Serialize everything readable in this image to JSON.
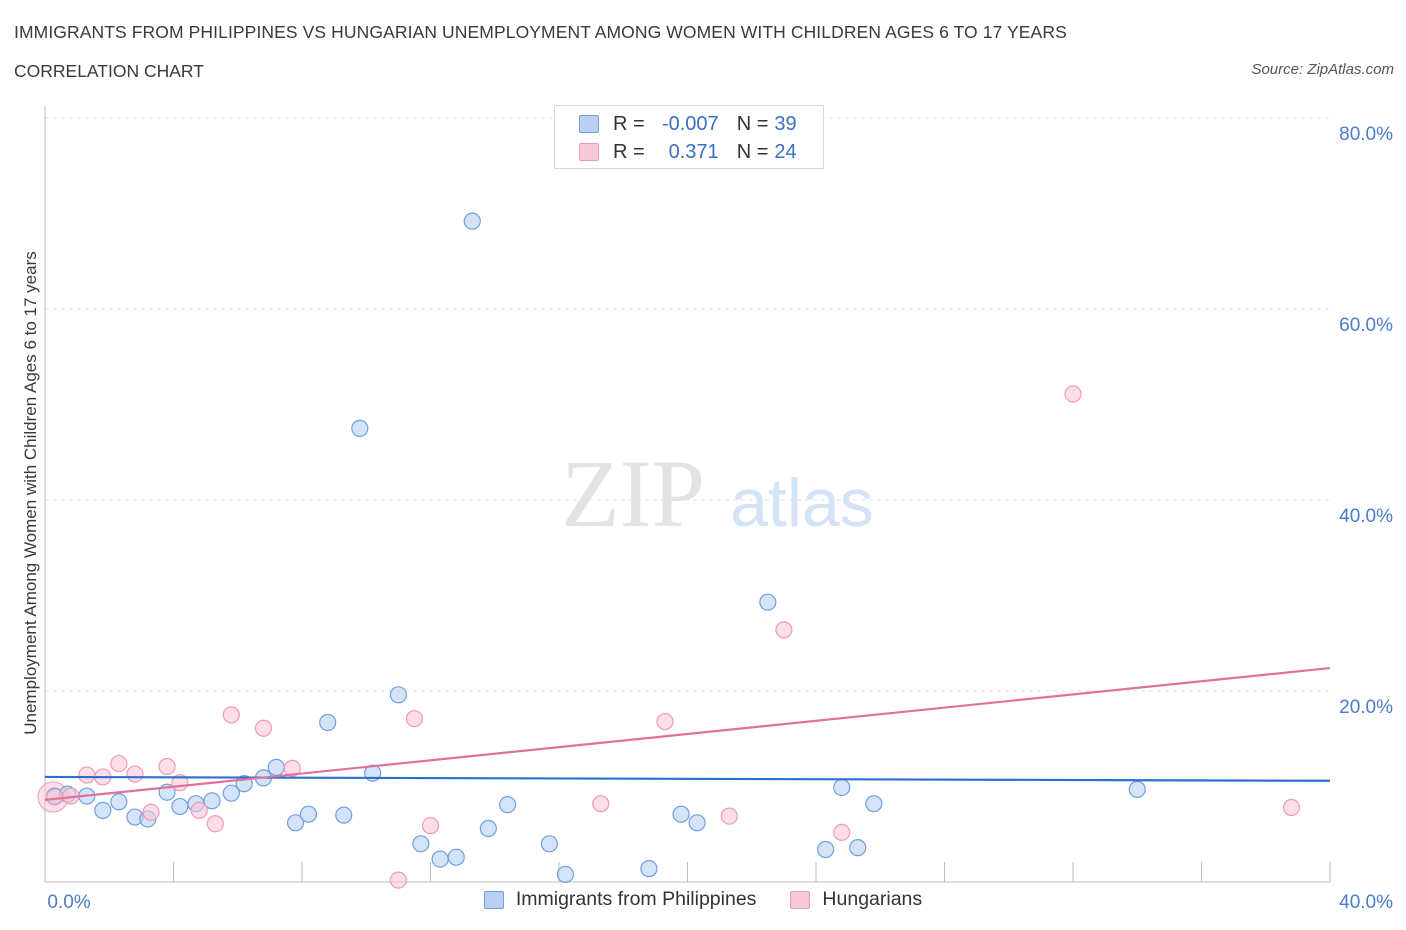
{
  "chart_data": {
    "type": "scatter",
    "title": "IMMIGRANTS FROM PHILIPPINES VS HUNGARIAN UNEMPLOYMENT AMONG WOMEN WITH CHILDREN AGES 6 TO 17 YEARS",
    "subtitle": "CORRELATION CHART",
    "source": "Source: ZipAtlas.com",
    "xlabel": "",
    "ylabel": "Unemployment Among Women with Children Ages 6 to 17 years",
    "xlim": [
      0,
      40
    ],
    "ylim": [
      0,
      80
    ],
    "x_tick_labels": [
      "0.0%",
      "40.0%"
    ],
    "y_tick_labels": [
      "80.0%",
      "60.0%",
      "40.0%",
      "20.0%"
    ],
    "y_tick_values": [
      80,
      60,
      40,
      20
    ],
    "watermark": {
      "zip": "ZIP",
      "atlas": "atlas"
    },
    "legend": {
      "rows": [
        {
          "r_label": "R =",
          "r_value": "-0.007",
          "n_label": "N =",
          "n_value": "39"
        },
        {
          "r_label": "R =",
          "r_value": "0.371",
          "n_label": "N =",
          "n_value": "24"
        }
      ]
    },
    "series": [
      {
        "name": "Immigrants from Philippines",
        "color": "#6f9fe0",
        "fill": "#b9d0f3",
        "line_color": "#2b6fd1",
        "trend": {
          "x0": 0,
          "y0": 11.0,
          "x1": 40,
          "y1": 10.6
        },
        "points": [
          [
            0.3,
            9.0
          ],
          [
            0.7,
            9.2
          ],
          [
            1.3,
            9.0
          ],
          [
            1.8,
            7.5
          ],
          [
            2.3,
            8.4
          ],
          [
            2.8,
            6.8
          ],
          [
            3.2,
            6.6
          ],
          [
            3.8,
            9.4
          ],
          [
            4.2,
            7.9
          ],
          [
            4.7,
            8.2
          ],
          [
            5.2,
            8.5
          ],
          [
            5.8,
            9.3
          ],
          [
            6.2,
            10.3
          ],
          [
            6.8,
            10.9
          ],
          [
            7.2,
            12.0
          ],
          [
            7.8,
            6.2
          ],
          [
            8.2,
            7.1
          ],
          [
            8.8,
            16.7
          ],
          [
            9.3,
            7.0
          ],
          [
            9.8,
            47.5
          ],
          [
            10.2,
            11.4
          ],
          [
            11.0,
            19.6
          ],
          [
            11.7,
            4.0
          ],
          [
            12.3,
            2.4
          ],
          [
            12.8,
            2.6
          ],
          [
            13.3,
            69.2
          ],
          [
            13.8,
            5.6
          ],
          [
            14.4,
            8.1
          ],
          [
            15.7,
            4.0
          ],
          [
            16.2,
            0.8
          ],
          [
            18.8,
            1.4
          ],
          [
            19.8,
            7.1
          ],
          [
            20.3,
            6.2
          ],
          [
            22.5,
            29.3
          ],
          [
            24.3,
            3.4
          ],
          [
            24.8,
            9.9
          ],
          [
            25.3,
            3.6
          ],
          [
            25.8,
            8.2
          ],
          [
            34.0,
            9.7
          ]
        ]
      },
      {
        "name": "Hungarians",
        "color": "#f09ab5",
        "fill": "#f9c8d8",
        "line_color": "#e0729a",
        "trend": {
          "x0": 0,
          "y0": 8.6,
          "x1": 40,
          "y1": 22.4
        },
        "points": [
          [
            0.3,
            8.9
          ],
          [
            0.8,
            9.0
          ],
          [
            1.3,
            11.2
          ],
          [
            1.8,
            11.0
          ],
          [
            2.3,
            12.4
          ],
          [
            2.8,
            11.3
          ],
          [
            3.3,
            7.3
          ],
          [
            3.8,
            12.1
          ],
          [
            4.2,
            10.4
          ],
          [
            4.8,
            7.5
          ],
          [
            5.3,
            6.1
          ],
          [
            5.8,
            17.5
          ],
          [
            6.8,
            16.1
          ],
          [
            7.7,
            11.9
          ],
          [
            11.0,
            0.2
          ],
          [
            11.5,
            17.1
          ],
          [
            12.0,
            5.9
          ],
          [
            17.3,
            8.2
          ],
          [
            19.3,
            16.8
          ],
          [
            21.3,
            6.9
          ],
          [
            23.0,
            26.4
          ],
          [
            24.8,
            5.2
          ],
          [
            32.0,
            51.1
          ],
          [
            38.8,
            7.8
          ]
        ]
      }
    ]
  }
}
